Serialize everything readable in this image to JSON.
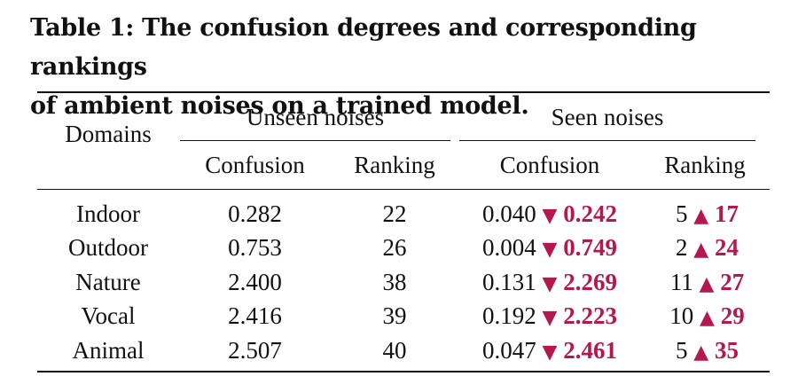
{
  "caption": {
    "line1": "Table 1: The confusion degrees and corresponding rankings",
    "line2": "of ambient noises on a trained model."
  },
  "header": {
    "domains": "Domains",
    "unseen_group": "Unseen noises",
    "seen_group": "Seen noises",
    "confusion": "Confusion",
    "ranking": "Ranking"
  },
  "colors": {
    "delta": "#b5174f",
    "text": "#111111"
  },
  "symbols": {
    "down": "▼",
    "up": "▲"
  },
  "rows": [
    {
      "domain": "Indoor",
      "unseen_confusion": "0.282",
      "unseen_ranking": "22",
      "seen_confusion": "0.040",
      "confusion_delta": "0.242",
      "seen_ranking": "5",
      "ranking_delta": "17"
    },
    {
      "domain": "Outdoor",
      "unseen_confusion": "0.753",
      "unseen_ranking": "26",
      "seen_confusion": "0.004",
      "confusion_delta": "0.749",
      "seen_ranking": "2",
      "ranking_delta": "24"
    },
    {
      "domain": "Nature",
      "unseen_confusion": "2.400",
      "unseen_ranking": "38",
      "seen_confusion": "0.131",
      "confusion_delta": "2.269",
      "seen_ranking": "11",
      "ranking_delta": "27"
    },
    {
      "domain": "Vocal",
      "unseen_confusion": "2.416",
      "unseen_ranking": "39",
      "seen_confusion": "0.192",
      "confusion_delta": "2.223",
      "seen_ranking": "10",
      "ranking_delta": "29"
    },
    {
      "domain": "Animal",
      "unseen_confusion": "2.507",
      "unseen_ranking": "40",
      "seen_confusion": "0.047",
      "confusion_delta": "2.461",
      "seen_ranking": "5",
      "ranking_delta": "35"
    }
  ]
}
